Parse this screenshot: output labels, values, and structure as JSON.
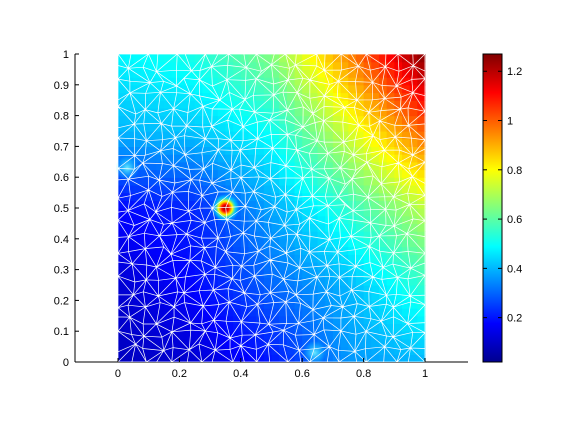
{
  "chart_data": {
    "type": "heatmap",
    "title": "",
    "xlabel": "",
    "ylabel": "",
    "xlim": [
      -0.14,
      1.14
    ],
    "ylim": [
      0,
      1
    ],
    "x_ticks": [
      "0",
      "0.2",
      "0.4",
      "0.6",
      "0.8",
      "1"
    ],
    "y_ticks": [
      "0",
      "0.1",
      "0.2",
      "0.3",
      "0.4",
      "0.5",
      "0.6",
      "0.7",
      "0.8",
      "0.9",
      "1"
    ],
    "colorbar": {
      "colormap": "jet",
      "range": [
        0.02,
        1.27
      ],
      "ticks": [
        "0.2",
        "0.4",
        "0.6",
        "0.8",
        "1",
        "1.2"
      ]
    },
    "field_samples": {
      "x": [
        0,
        0.25,
        0.5,
        0.75,
        1
      ],
      "y": [
        0,
        0.25,
        0.5,
        0.75,
        1
      ],
      "values": [
        [
          0.1,
          0.12,
          0.2,
          0.36,
          0.4
        ],
        [
          0.12,
          0.18,
          0.3,
          0.4,
          0.55
        ],
        [
          0.18,
          0.22,
          0.38,
          0.55,
          0.72
        ],
        [
          0.4,
          0.42,
          0.5,
          0.75,
          1.0
        ],
        [
          0.48,
          0.52,
          0.65,
          0.95,
          1.27
        ]
      ]
    },
    "hotspots": [
      {
        "x": 0.35,
        "y": 0.5,
        "value": 1.27
      },
      {
        "x": 0.03,
        "y": 0.63,
        "value": 0.4
      },
      {
        "x": 0.64,
        "y": 0.03,
        "value": 0.38
      }
    ],
    "mesh": "triangulated, white edges",
    "grid": false
  }
}
